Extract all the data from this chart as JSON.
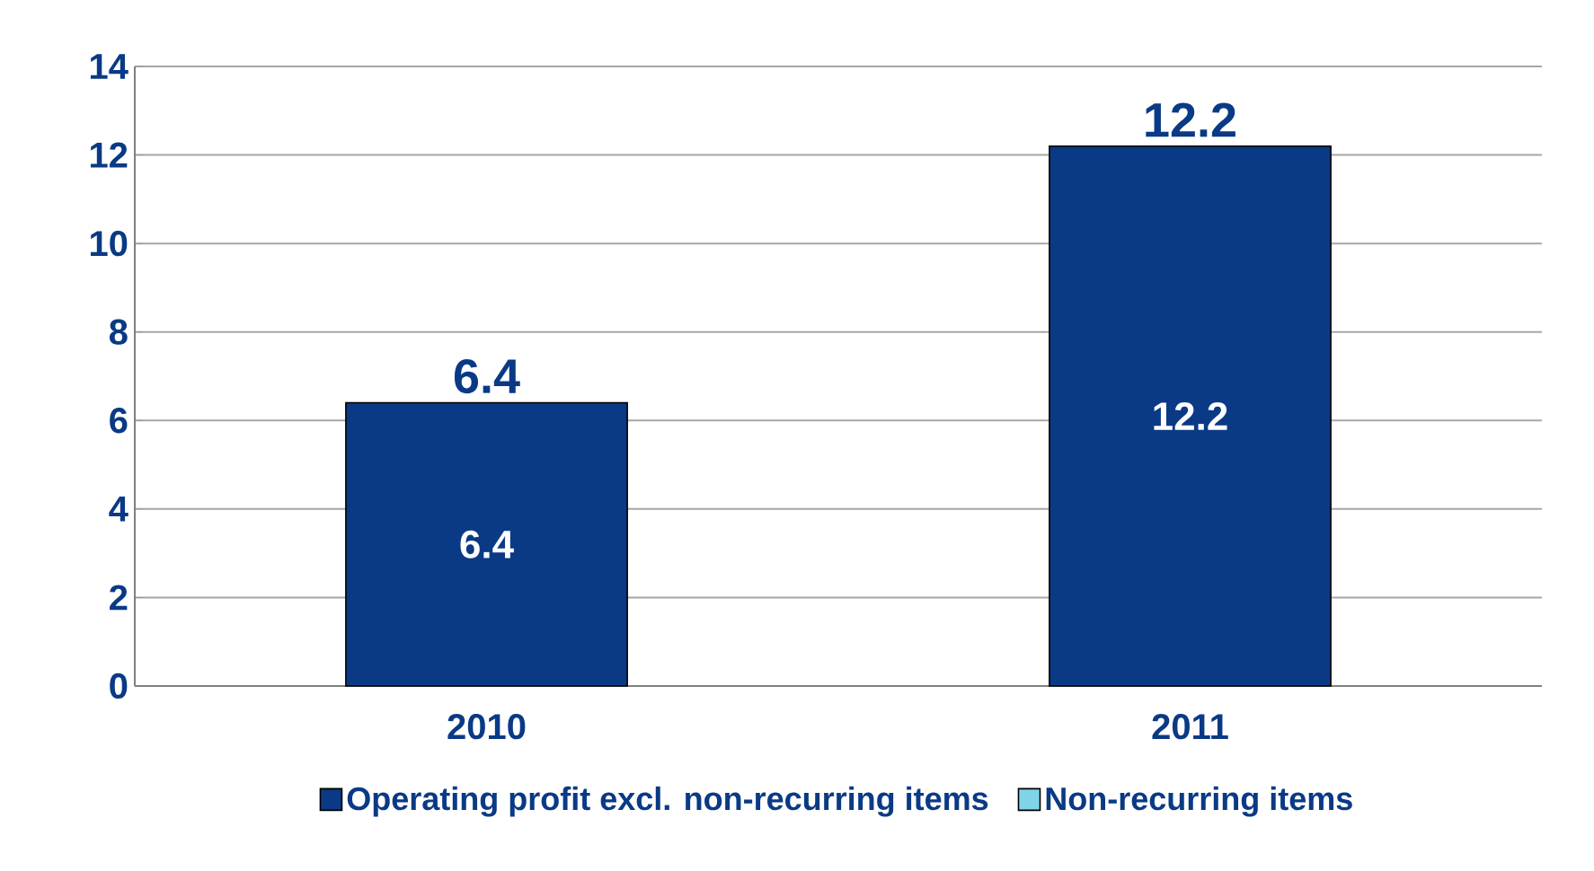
{
  "chart_data": {
    "type": "bar",
    "stacked": true,
    "categories": [
      "2010",
      "2011"
    ],
    "series": [
      {
        "name": "Operating profit excl. non-recurring items",
        "color": "#0A3A85",
        "values": [
          6.4,
          12.2
        ],
        "value_labels": [
          "6.4",
          "12.2"
        ]
      },
      {
        "name": "Non-recurring items",
        "color": "#7FD4E8",
        "values": [
          0,
          0
        ]
      }
    ],
    "totals": [
      "6.4",
      "12.2"
    ],
    "ylim": [
      0,
      14
    ],
    "yticks": [
      0,
      2,
      4,
      6,
      8,
      10,
      12,
      14
    ],
    "grid": "y",
    "legend": "bottom"
  }
}
